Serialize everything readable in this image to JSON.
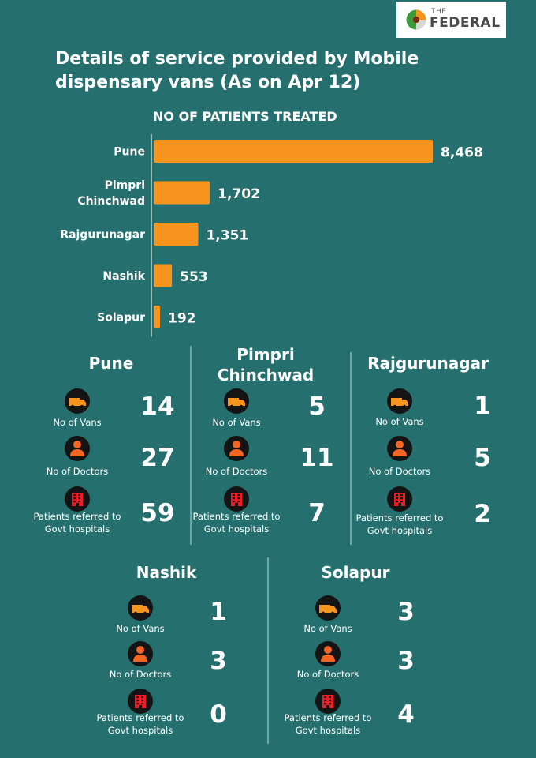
{
  "brand": {
    "small": "THE",
    "big": "FEDERAL"
  },
  "title": "Details of service provided by Mobile dispensary vans (As on Apr 12)",
  "chart_data": {
    "type": "bar",
    "orientation": "horizontal",
    "title": "NO OF PATIENTS TREATED",
    "categories": [
      "Pune",
      "Pimpri Chinchwad",
      "Rajgurunagar",
      "Nashik",
      "Solapur"
    ],
    "category_lines": [
      [
        "Pune"
      ],
      [
        "Pimpri",
        "Chinchwad"
      ],
      [
        "Rajgurunagar"
      ],
      [
        "Nashik"
      ],
      [
        "Solapur"
      ]
    ],
    "values": [
      8468,
      1702,
      1351,
      553,
      192
    ],
    "value_labels": [
      "8,468",
      "1,702",
      "1,351",
      "553",
      "192"
    ],
    "bar_color": "#f7941d"
  },
  "districts": [
    {
      "name": "Pune",
      "vans": "14",
      "doctors": "27",
      "referred": "59"
    },
    {
      "name": "Pimpri Chinchwad",
      "vans": "5",
      "doctors": "11",
      "referred": "7"
    },
    {
      "name": "Rajgurunagar",
      "vans": "1",
      "doctors": "5",
      "referred": "2"
    },
    {
      "name": "Nashik",
      "vans": "1",
      "doctors": "3",
      "referred": "0"
    },
    {
      "name": "Solapur",
      "vans": "3",
      "doctors": "3",
      "referred": "4"
    }
  ],
  "labels": {
    "vans": "No of Vans",
    "doctors": "No of Doctors",
    "referred": "Patients referred to Govt hospitals"
  },
  "icons": {
    "vans": "van-icon",
    "doctors": "doctor-icon",
    "referred": "hospital-icon"
  },
  "colors": {
    "background": "#25706f",
    "bar": "#f7941d",
    "icon_van": "#f7941d",
    "icon_doctor": "#f26522",
    "icon_hospital": "#ed1c24"
  }
}
